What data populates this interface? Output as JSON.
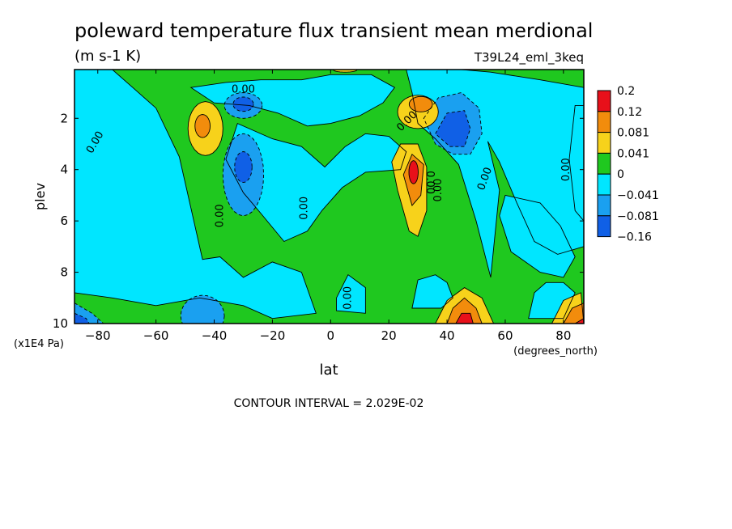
{
  "chart_data": {
    "type": "heatmap",
    "title": "poleward temperature flux transient mean merdional",
    "units": "(m s-1 K)",
    "dataset": "T39L24_eml_3keq",
    "xlabel": "lat",
    "x_units": "(degrees_north)",
    "ylabel": "plev",
    "y_units": "(x1E4 Pa)",
    "x_ticks": [
      -80,
      -60,
      -40,
      -20,
      0,
      20,
      40,
      60,
      80
    ],
    "x_tick_labels": [
      "-80",
      "-60",
      "-40",
      "-20",
      "0",
      "20",
      "40",
      "60",
      "80"
    ],
    "y_ticks": [
      2,
      4,
      6,
      8,
      10
    ],
    "y_tick_labels": [
      "2",
      "4",
      "6",
      "8",
      "10"
    ],
    "xlim": [
      -88,
      87
    ],
    "ylim": [
      10,
      0.1
    ],
    "y_inverted": true,
    "contour_interval_text": "CONTOUR INTERVAL = 2.029E-02",
    "contour_labels": [
      "0.00",
      "0.00",
      "0.00",
      "0.00",
      "0.00",
      "0.00",
      "0.00",
      "0.00",
      "0.00",
      "0.00"
    ],
    "colorbar": {
      "levels": [
        "0.2",
        "0.12",
        "0.081",
        "0.041",
        "0",
        "−0.041",
        "−0.081",
        "−0.16"
      ],
      "colors": [
        "#e8101a",
        "#f28c0c",
        "#f7d21b",
        "#1fc81f",
        "#00e6ff",
        "#1aa0f0",
        "#1060e6"
      ]
    },
    "colors": {
      "red": "#e8101a",
      "orange": "#f28c0c",
      "yellow": "#f7d21b",
      "green": "#1fc81f",
      "cyan": "#00e6ff",
      "mid_blue": "#1aa0f0",
      "dark_blue": "#1060e6"
    },
    "features": [
      {
        "kind": "positive_max",
        "lat": -43,
        "plev": 2.4,
        "level": 2
      },
      {
        "kind": "negative_min",
        "lat": -30,
        "plev": 4.2,
        "level": -2
      },
      {
        "kind": "negative_min",
        "lat": -30,
        "plev": 1.5,
        "level": -3
      },
      {
        "kind": "positive_max",
        "lat": 29,
        "plev": 4.2,
        "level": 4
      },
      {
        "kind": "positive_max",
        "lat": 31,
        "plev": 1.5,
        "level": 3
      },
      {
        "kind": "negative_min",
        "lat": 42,
        "plev": 2.5,
        "level": -3
      },
      {
        "kind": "positive_max",
        "lat": 46,
        "plev": 9.8,
        "level": 4
      },
      {
        "kind": "positive_max",
        "lat": 87,
        "plev": 9.8,
        "level": 3
      },
      {
        "kind": "negative_min",
        "lat": -87,
        "plev": 9.8,
        "level": -3
      },
      {
        "kind": "negative_min",
        "lat": -44,
        "plev": 9.6,
        "level": -2
      }
    ]
  }
}
